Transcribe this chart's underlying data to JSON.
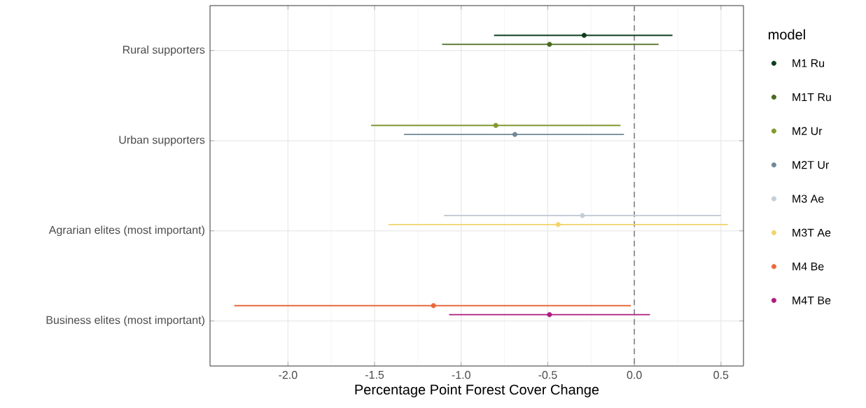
{
  "chart_data": {
    "type": "scatter",
    "orientation": "horizontal",
    "xlabel": "Percentage Point Forest Cover Change",
    "legend_title": "model",
    "categories": [
      "Rural supporters",
      "Urban supporters",
      "Agrarian elites (most important)",
      "Business elites (most important)"
    ],
    "series": [
      {
        "name": "M1 Ru",
        "color": "#0b3d1c",
        "values": [
          -0.29,
          null,
          null,
          null
        ],
        "errors": [
          [
            -0.81,
            0.22
          ],
          null,
          null,
          null
        ]
      },
      {
        "name": "M1T Ru",
        "color": "#4a6b1e",
        "values": [
          -0.49,
          null,
          null,
          null
        ],
        "errors": [
          [
            -1.11,
            0.14
          ],
          null,
          null,
          null
        ]
      },
      {
        "name": "M2 Ur",
        "color": "#7f9a2e",
        "values": [
          null,
          -0.8,
          null,
          null
        ],
        "errors": [
          null,
          [
            -1.52,
            -0.08
          ],
          null,
          null
        ]
      },
      {
        "name": "M2T Ur",
        "color": "#6f8796",
        "values": [
          null,
          -0.69,
          null,
          null
        ],
        "errors": [
          null,
          [
            -1.33,
            -0.06
          ],
          null,
          null
        ]
      },
      {
        "name": "M3 Ae",
        "color": "#c5ced7",
        "values": [
          null,
          null,
          -0.3,
          null
        ],
        "errors": [
          null,
          null,
          [
            -1.1,
            0.5
          ],
          null
        ]
      },
      {
        "name": "M3T Ae",
        "color": "#f2d36b",
        "values": [
          null,
          null,
          -0.44,
          null
        ],
        "errors": [
          null,
          null,
          [
            -1.42,
            0.54
          ],
          null
        ]
      },
      {
        "name": "M4 Be",
        "color": "#e8693c",
        "values": [
          null,
          null,
          null,
          -1.16
        ],
        "errors": [
          null,
          null,
          null,
          [
            -2.31,
            -0.02
          ]
        ]
      },
      {
        "name": "M4T Be",
        "color": "#b01a7e",
        "values": [
          null,
          null,
          null,
          -0.49
        ],
        "errors": [
          null,
          null,
          null,
          [
            -1.07,
            0.09
          ]
        ]
      }
    ],
    "xlim": [
      -2.45,
      0.63
    ],
    "xticks": [
      {
        "value": -2,
        "label": "-2.0"
      },
      -1.5,
      {
        "value": -1,
        "label": "-1.0"
      },
      -0.5,
      {
        "value": 0,
        "label": "0.0"
      },
      0.5
    ],
    "ref_lines": [
      {
        "axis": "x",
        "value": 0,
        "color": "#8c8c8c",
        "line_style": "dashed"
      }
    ],
    "grid": true,
    "legend": "right",
    "marker": "circle"
  }
}
